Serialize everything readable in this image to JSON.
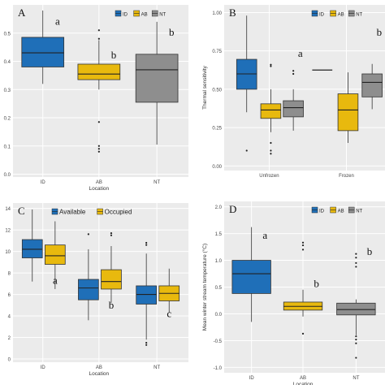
{
  "colors": {
    "ID": "#1f6fb8",
    "AB": "#e8b90e",
    "NT": "#8e8e8e",
    "Available": "#1f6fb8",
    "Occupied": "#e8b90e",
    "panel_bg": "#ebebeb",
    "grid": "#ffffff"
  },
  "chart_data": [
    {
      "type": "boxplot",
      "panel_letter": "A",
      "xlabel": "Location",
      "ylabel": "",
      "ylim": [
        -0.01,
        0.6
      ],
      "yticks": [
        0.0,
        0.1,
        0.2,
        0.3,
        0.4,
        0.5
      ],
      "ytick_labels": [
        "0.0",
        "0.1",
        "0.2",
        "0.3",
        "0.4",
        "0.5"
      ],
      "grid": true,
      "legend_position": "top-right",
      "legend": [
        {
          "label": "ID",
          "color_key": "ID"
        },
        {
          "label": "AB",
          "color_key": "AB"
        },
        {
          "label": "NT",
          "color_key": "NT"
        }
      ],
      "categories": [
        "ID",
        "AB",
        "NT"
      ],
      "boxes": [
        {
          "category": "ID",
          "color_key": "ID",
          "min": 0.32,
          "q1": 0.38,
          "median": 0.43,
          "q3": 0.485,
          "max": 0.58,
          "outliers": [],
          "letter": "a",
          "letter_y": 0.53
        },
        {
          "category": "AB",
          "color_key": "AB",
          "min": 0.3,
          "q1": 0.335,
          "median": 0.355,
          "q3": 0.39,
          "max": 0.475,
          "outliers": [
            0.51,
            0.48,
            0.185,
            0.1,
            0.09,
            0.08
          ],
          "letter": "b",
          "letter_y": 0.41
        },
        {
          "category": "NT",
          "color_key": "NT",
          "min": 0.105,
          "q1": 0.255,
          "median": 0.37,
          "q3": 0.425,
          "max": 0.54,
          "outliers": [],
          "letter": "b",
          "letter_y": 0.49
        }
      ]
    },
    {
      "type": "boxplot",
      "panel_letter": "B",
      "xlabel": "",
      "ylabel": "Thermal sensitivity",
      "ylim": [
        -0.03,
        1.05
      ],
      "yticks": [
        0.0,
        0.25,
        0.5,
        0.75,
        1.0
      ],
      "ytick_labels": [
        "0.00",
        "0.25",
        "0.50",
        "0.75",
        "1.00"
      ],
      "grid": true,
      "legend_position": "top-right",
      "legend": [
        {
          "label": "ID",
          "color_key": "ID"
        },
        {
          "label": "AB",
          "color_key": "AB"
        },
        {
          "label": "NT",
          "color_key": "NT"
        }
      ],
      "categories": [
        "Unfrozen",
        "Frozen"
      ],
      "boxes": [
        {
          "category": "Unfrozen",
          "color_key": "ID",
          "min": 0.35,
          "q1": 0.5,
          "median": 0.6,
          "q3": 0.695,
          "max": 0.98,
          "outliers": [
            0.1
          ],
          "letter": "",
          "letter_y": 0
        },
        {
          "category": "Unfrozen",
          "color_key": "AB",
          "min": 0.22,
          "q1": 0.31,
          "median": 0.365,
          "q3": 0.405,
          "max": 0.5,
          "outliers": [
            0.66,
            0.65,
            0.15,
            0.1,
            0.08
          ],
          "letter": "",
          "letter_y": 0
        },
        {
          "category": "Unfrozen",
          "color_key": "NT",
          "min": 0.23,
          "q1": 0.32,
          "median": 0.38,
          "q3": 0.425,
          "max": 0.5,
          "outliers": [
            0.62,
            0.6
          ],
          "letter": "a",
          "letter_y": 0.71
        },
        {
          "category": "Frozen",
          "color_key": "ID",
          "min": 0.625,
          "q1": 0.625,
          "median": 0.625,
          "q3": 0.625,
          "max": 0.625,
          "outliers": [],
          "letter": "",
          "letter_y": 0
        },
        {
          "category": "Frozen",
          "color_key": "AB",
          "min": 0.15,
          "q1": 0.23,
          "median": 0.365,
          "q3": 0.47,
          "max": 0.61,
          "outliers": [],
          "letter": "",
          "letter_y": 0
        },
        {
          "category": "Frozen",
          "color_key": "NT",
          "min": 0.37,
          "q1": 0.45,
          "median": 0.545,
          "q3": 0.6,
          "max": 0.665,
          "outliers": [],
          "letter": "b",
          "letter_y": 0.85
        }
      ]
    },
    {
      "type": "boxplot",
      "panel_letter": "C",
      "xlabel": "Location",
      "ylabel": "",
      "ylim": [
        -0.3,
        14.5
      ],
      "yticks": [
        0,
        2,
        4,
        6,
        8,
        10,
        12,
        14
      ],
      "ytick_labels": [
        "0",
        "2",
        "4",
        "6",
        "8",
        "10",
        "12",
        "14"
      ],
      "grid": true,
      "legend_position": "top-left",
      "legend": [
        {
          "label": "Available",
          "color_key": "Available"
        },
        {
          "label": "Occupied",
          "color_key": "Occupied"
        }
      ],
      "categories": [
        "ID",
        "AB",
        "NT"
      ],
      "boxes": [
        {
          "category": "ID",
          "color_key": "Available",
          "min": 7.2,
          "q1": 9.4,
          "median": 10.2,
          "q3": 11.1,
          "max": 13.9,
          "outliers": [],
          "letter": "",
          "letter_y": 0
        },
        {
          "category": "ID",
          "color_key": "Occupied",
          "min": 6.5,
          "q1": 8.8,
          "median": 9.6,
          "q3": 10.6,
          "max": 12.8,
          "outliers": [],
          "letter": "a",
          "letter_y": 7.0
        },
        {
          "category": "AB",
          "color_key": "Available",
          "min": 3.6,
          "q1": 5.5,
          "median": 6.6,
          "q3": 7.4,
          "max": 10.2,
          "outliers": [
            11.6
          ],
          "letter": "",
          "letter_y": 0
        },
        {
          "category": "AB",
          "color_key": "Occupied",
          "min": 5.2,
          "q1": 6.5,
          "median": 7.2,
          "q3": 8.3,
          "max": 10.5,
          "outliers": [
            11.7,
            11.5
          ],
          "letter": "b",
          "letter_y": 4.7
        },
        {
          "category": "NT",
          "color_key": "Available",
          "min": 1.8,
          "q1": 5.1,
          "median": 6.0,
          "q3": 6.8,
          "max": 9.8,
          "outliers": [
            10.8,
            10.6,
            1.5,
            1.3
          ],
          "letter": "",
          "letter_y": 0
        },
        {
          "category": "NT",
          "color_key": "Occupied",
          "min": 4.3,
          "q1": 5.4,
          "median": 6.1,
          "q3": 6.8,
          "max": 8.4,
          "outliers": [],
          "letter": "c",
          "letter_y": 3.9
        }
      ]
    },
    {
      "type": "boxplot",
      "panel_letter": "D",
      "xlabel": "Location",
      "ylabel": "Mean winter stream temperature (°C)",
      "ylim": [
        -1.1,
        2.1
      ],
      "yticks": [
        -1.0,
        -0.5,
        0.0,
        0.5,
        1.0,
        1.5,
        2.0
      ],
      "ytick_labels": [
        "-1.0",
        "-0.5",
        "0.0",
        "0.5",
        "1.0",
        "1.5",
        "2.0"
      ],
      "grid": true,
      "legend_position": "top-right",
      "legend": [
        {
          "label": "ID",
          "color_key": "ID"
        },
        {
          "label": "AB",
          "color_key": "AB"
        },
        {
          "label": "NT",
          "color_key": "NT"
        }
      ],
      "categories": [
        "ID",
        "AB",
        "NT"
      ],
      "boxes": [
        {
          "category": "ID",
          "color_key": "ID",
          "min": -0.15,
          "q1": 0.38,
          "median": 0.75,
          "q3": 1.0,
          "max": 1.62,
          "outliers": [],
          "letter": "a",
          "letter_y": 1.4
        },
        {
          "category": "AB",
          "color_key": "AB",
          "min": -0.05,
          "q1": 0.07,
          "median": 0.14,
          "q3": 0.22,
          "max": 0.45,
          "outliers": [
            1.33,
            1.28,
            1.2,
            -0.37
          ],
          "letter": "b",
          "letter_y": 0.5
        },
        {
          "category": "NT",
          "color_key": "NT",
          "min": -0.4,
          "q1": -0.02,
          "median": 0.08,
          "q3": 0.2,
          "max": 0.27,
          "outliers": [
            1.12,
            1.05,
            0.95,
            0.88,
            -0.42,
            -0.48,
            -0.55,
            -0.82
          ],
          "letter": "b",
          "letter_y": 1.1
        }
      ]
    }
  ]
}
